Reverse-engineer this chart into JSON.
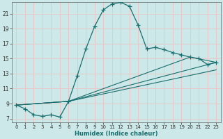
{
  "xlabel": "Humidex (Indice chaleur)",
  "background_color": "#cce8e8",
  "grid_color": "#e8c8c8",
  "line_color": "#1a6e6e",
  "xlim": [
    -0.5,
    23.5
  ],
  "ylim": [
    6.5,
    22.5
  ],
  "xticks": [
    0,
    1,
    2,
    3,
    4,
    5,
    6,
    7,
    8,
    9,
    10,
    11,
    12,
    13,
    14,
    15,
    16,
    17,
    18,
    19,
    20,
    21,
    22,
    23
  ],
  "yticks": [
    7,
    9,
    11,
    13,
    15,
    17,
    19,
    21
  ],
  "main_x": [
    0,
    1,
    2,
    3,
    4,
    5,
    6,
    7,
    8,
    9,
    10,
    11,
    12,
    13,
    14,
    15,
    16,
    17,
    18,
    19,
    20,
    21,
    22,
    23
  ],
  "main_y": [
    8.8,
    8.3,
    7.5,
    7.3,
    7.5,
    7.2,
    9.3,
    12.7,
    16.3,
    19.3,
    21.5,
    22.3,
    22.5,
    22.0,
    19.5,
    16.3,
    16.5,
    16.2,
    15.8,
    15.5,
    15.2,
    15.0,
    14.2,
    14.5
  ],
  "line1_x": [
    0,
    6,
    23
  ],
  "line1_y": [
    8.8,
    9.3,
    14.5
  ],
  "line2_x": [
    0,
    6,
    23
  ],
  "line2_y": [
    8.8,
    9.3,
    13.5
  ],
  "line3_x": [
    0,
    6,
    20,
    23
  ],
  "line3_y": [
    8.8,
    9.3,
    15.2,
    14.5
  ]
}
